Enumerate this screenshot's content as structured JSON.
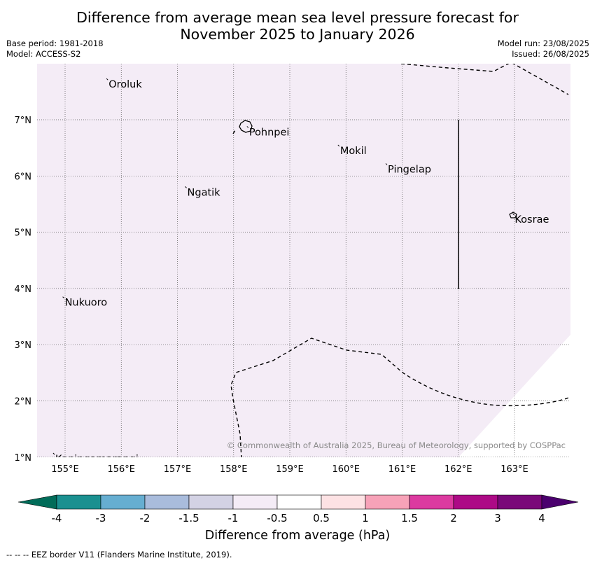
{
  "title_line1": "Difference from average mean sea level pressure forecast for",
  "title_line2": "November 2025 to January 2026",
  "meta_left": [
    "Base period: 1981-2018",
    "Model: ACCESS-S2"
  ],
  "meta_right": [
    "Model run: 23/08/2025",
    "Issued: 26/08/2025"
  ],
  "lon_labels": [
    "155°E",
    "156°E",
    "157°E",
    "158°E",
    "159°E",
    "160°E",
    "161°E",
    "162°E",
    "163°E"
  ],
  "lat_labels": [
    "7°N",
    "6°N",
    "5°N",
    "4°N",
    "3°N",
    "2°N",
    "1°N"
  ],
  "places": [
    {
      "name": "Oroluk",
      "lon": 155.75,
      "lat": 7.72
    },
    {
      "name": "Pohnpei",
      "lon": 158.25,
      "lat": 6.87
    },
    {
      "name": "Mokil",
      "lon": 159.87,
      "lat": 6.54
    },
    {
      "name": "Pingelap",
      "lon": 160.72,
      "lat": 6.21
    },
    {
      "name": "Ngatik",
      "lon": 157.15,
      "lat": 5.8
    },
    {
      "name": "Kosrae",
      "lon": 162.98,
      "lat": 5.32
    },
    {
      "name": "Nukuoro",
      "lon": 154.97,
      "lat": 3.84
    },
    {
      "name": "Kapingamarangi",
      "lon": 154.8,
      "lat": 1.06
    }
  ],
  "copyright": "© Commonwealth of Australia 2025, Bureau of Meteorology, supported by COSPPac",
  "colorbar": {
    "title": "Difference from average (hPa)",
    "ticks": [
      "-4",
      "-3",
      "-2",
      "-1.5",
      "-1",
      "-0.5",
      "0.5",
      "1",
      "1.5",
      "2",
      "3",
      "4"
    ],
    "colors": [
      "#1a9090",
      "#66aed1",
      "#a9bcdc",
      "#d3d2e4",
      "#f4ecf6",
      "#ffffff",
      "#fde2e4",
      "#f7a2b8",
      "#dc3aa0",
      "#ad0a86",
      "#7a0879"
    ],
    "under_color": "#016c59",
    "over_color": "#4b006e"
  },
  "map_fill_color": "#f4ecf6",
  "footnote": "--  --  -- EEZ border V11 (Flanders Marine Institute, 2019)."
}
